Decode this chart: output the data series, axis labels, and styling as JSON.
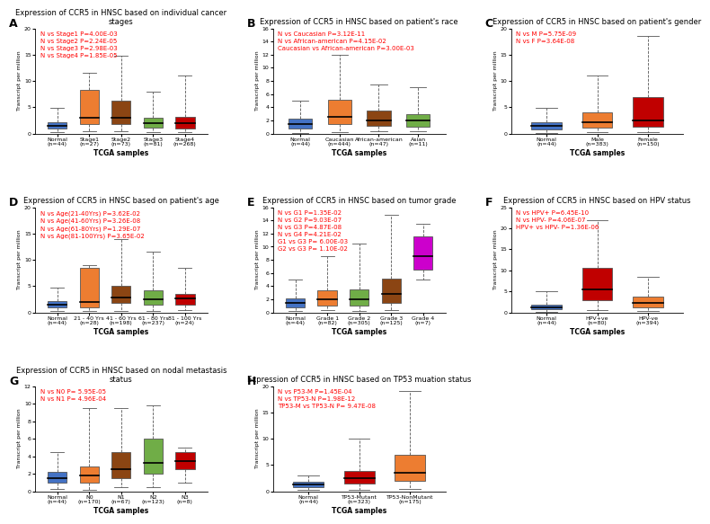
{
  "panels": {
    "A": {
      "title": "Expression of CCR5 in HNSC based on individual cancer\nstages",
      "labels": [
        "Normal\n(n=44)",
        "Stage1\n(n=27)",
        "Stage2\n(n=73)",
        "Stage3\n(n=81)",
        "Stage4\n(n=268)"
      ],
      "colors": [
        "#4472C4",
        "#ED7D31",
        "#8B4513",
        "#70AD47",
        "#C00000"
      ],
      "ylim": [
        0,
        20
      ],
      "yticks": [
        0,
        5,
        10,
        15,
        20
      ],
      "stats_text": "N vs Stage1 P=4.00E-03\nN vs Stage2 P=2.24E-05\nN vs Stage3 P=2.98E-03\nN vs Stage4 P=1.85E-05",
      "boxes": [
        {
          "med": 1.5,
          "q1": 1.0,
          "q3": 2.2,
          "whislo": 0.3,
          "whishi": 4.8
        },
        {
          "med": 3.0,
          "q1": 1.8,
          "q3": 8.3,
          "whislo": 0.4,
          "whishi": 11.5
        },
        {
          "med": 3.0,
          "q1": 1.8,
          "q3": 6.2,
          "whislo": 0.4,
          "whishi": 14.8
        },
        {
          "med": 2.0,
          "q1": 1.2,
          "q3": 3.0,
          "whislo": 0.3,
          "whishi": 8.0
        },
        {
          "med": 2.0,
          "q1": 1.0,
          "q3": 3.2,
          "whislo": 0.3,
          "whishi": 11.0
        }
      ]
    },
    "B": {
      "title": "Expression of CCR5 in HNSC based on patient's race",
      "labels": [
        "Normal\n(n=44)",
        "Caucasian\n(n=444)",
        "African-american\n(n=47)",
        "Asian\n(n=11)"
      ],
      "colors": [
        "#4472C4",
        "#ED7D31",
        "#8B4513",
        "#70AD47"
      ],
      "ylim": [
        0,
        16
      ],
      "yticks": [
        0,
        2,
        4,
        6,
        8,
        10,
        12,
        14,
        16
      ],
      "stats_text": "N vs Caucasian P=3.12E-11\nN vs African-american P=4.15E-02\nCaucasian vs African-american P=3.00E-03",
      "boxes": [
        {
          "med": 1.5,
          "q1": 0.8,
          "q3": 2.2,
          "whislo": 0.1,
          "whishi": 5.0
        },
        {
          "med": 2.5,
          "q1": 1.5,
          "q3": 5.2,
          "whislo": 0.2,
          "whishi": 12.0
        },
        {
          "med": 2.0,
          "q1": 1.2,
          "q3": 3.5,
          "whislo": 0.3,
          "whishi": 7.5
        },
        {
          "med": 2.0,
          "q1": 1.0,
          "q3": 3.0,
          "whislo": 0.3,
          "whishi": 7.0
        }
      ]
    },
    "C": {
      "title": "Expression of CCR5 in HNSC based on patient's gender",
      "labels": [
        "Normal\n(n=44)",
        "Male\n(n=383)",
        "Female\n(n=150)"
      ],
      "colors": [
        "#4472C4",
        "#ED7D31",
        "#C00000"
      ],
      "ylim": [
        0,
        20
      ],
      "yticks": [
        0,
        5,
        10,
        15,
        20
      ],
      "stats_text": "N vs M P=5.75E-09\nN vs F P=3.64E-08",
      "boxes": [
        {
          "med": 1.5,
          "q1": 0.8,
          "q3": 2.2,
          "whislo": 0.1,
          "whishi": 4.8
        },
        {
          "med": 2.2,
          "q1": 1.2,
          "q3": 4.0,
          "whislo": 0.2,
          "whishi": 11.0
        },
        {
          "med": 2.5,
          "q1": 1.3,
          "q3": 7.0,
          "whislo": 0.3,
          "whishi": 18.5
        }
      ]
    },
    "D": {
      "title": "Expression of CCR5 in HNSC based on patient's age",
      "labels": [
        "Normal\n(n=44)",
        "21 - 40 Yrs\n(n=28)",
        "41 - 60 Yrs\n(n=198)",
        "61 - 80 Yrs\n(n=237)",
        "81 - 100 Yrs\n(n=24)"
      ],
      "colors": [
        "#4472C4",
        "#ED7D31",
        "#8B4513",
        "#70AD47",
        "#C00000"
      ],
      "ylim": [
        0,
        20
      ],
      "yticks": [
        0,
        5,
        10,
        15,
        20
      ],
      "stats_text": "N vs Age(21-40Yrs) P=3.62E-02\nN vs Age(41-60Yrs) P=3.26E-08\nN vs Age(61-80Yrs) P=1.29E-07\nN vs Age(81-100Yrs) P=3.65E-02",
      "boxes": [
        {
          "med": 1.5,
          "q1": 1.0,
          "q3": 2.2,
          "whislo": 0.2,
          "whishi": 4.8
        },
        {
          "med": 2.0,
          "q1": 1.0,
          "q3": 8.5,
          "whislo": 0.3,
          "whishi": 9.0
        },
        {
          "med": 2.8,
          "q1": 1.8,
          "q3": 5.0,
          "whislo": 0.3,
          "whishi": 14.0
        },
        {
          "med": 2.5,
          "q1": 1.5,
          "q3": 4.2,
          "whislo": 0.3,
          "whishi": 11.5
        },
        {
          "med": 2.7,
          "q1": 1.5,
          "q3": 3.5,
          "whislo": 0.5,
          "whishi": 8.5
        }
      ]
    },
    "E": {
      "title": "Expression of CCR5 in HNSC based on tumor grade",
      "labels": [
        "Normal\n(n=44)",
        "Grade 1\n(n=82)",
        "Grade 2\n(n=305)",
        "Grade 3\n(n=125)",
        "Grade 4\n(n=7)"
      ],
      "colors": [
        "#4472C4",
        "#ED7D31",
        "#70AD47",
        "#8B4513",
        "#CC00CC"
      ],
      "ylim": [
        0,
        16
      ],
      "yticks": [
        0,
        2,
        4,
        6,
        8,
        10,
        12,
        14,
        16
      ],
      "stats_text": "N vs G1 P=1.35E-02\nN vs G2 P=9.03E-07\nN vs G3 P=4.87E-08\nN vs G4 P=4.21E-02\nG1 vs G3 P= 6.00E-03\nG2 vs G3 P= 1.10E-02",
      "boxes": [
        {
          "med": 1.5,
          "q1": 0.8,
          "q3": 2.2,
          "whislo": 0.2,
          "whishi": 5.0
        },
        {
          "med": 2.0,
          "q1": 1.0,
          "q3": 3.3,
          "whislo": 0.3,
          "whishi": 8.5
        },
        {
          "med": 2.0,
          "q1": 1.0,
          "q3": 3.5,
          "whislo": 0.2,
          "whishi": 10.5
        },
        {
          "med": 2.8,
          "q1": 1.5,
          "q3": 5.2,
          "whislo": 0.3,
          "whishi": 14.8
        },
        {
          "med": 8.5,
          "q1": 6.5,
          "q3": 11.5,
          "whislo": 5.0,
          "whishi": 13.5
        }
      ]
    },
    "F": {
      "title": "Expression of CCR5 in HNSC based on HPV status",
      "labels": [
        "Normal\n(n=44)",
        "HPV+ve\n(n=80)",
        "HPV-ve\n(n=394)"
      ],
      "colors": [
        "#4472C4",
        "#C00000",
        "#ED7D31"
      ],
      "ylim": [
        0,
        25
      ],
      "yticks": [
        0,
        5,
        10,
        15,
        20,
        25
      ],
      "stats_text": "N vs HPV+ P=6.45E-10\nN vs HPV- P=4.06E-07\nHPV+ vs HPV- P=1.36E-06",
      "boxes": [
        {
          "med": 1.2,
          "q1": 0.7,
          "q3": 1.8,
          "whislo": 0.1,
          "whishi": 5.0
        },
        {
          "med": 5.5,
          "q1": 3.0,
          "q3": 10.5,
          "whislo": 0.5,
          "whishi": 22.0
        },
        {
          "med": 2.2,
          "q1": 1.2,
          "q3": 3.8,
          "whislo": 0.3,
          "whishi": 8.5
        }
      ]
    },
    "G": {
      "title": "Expression of CCR5 in HNSC based on nodal metastasis\nstatus",
      "labels": [
        "Normal\n(n=44)",
        "N0\n(n=170)",
        "N1\n(n=67)",
        "N2\n(n=123)",
        "N3\n(n=8)"
      ],
      "colors": [
        "#4472C4",
        "#ED7D31",
        "#8B4513",
        "#70AD47",
        "#C00000"
      ],
      "ylim": [
        0,
        12
      ],
      "yticks": [
        0,
        2,
        4,
        6,
        8,
        10,
        12
      ],
      "stats_text": "N vs N0 P= 5.95E-05\nN vs N1 P= 4.96E-04",
      "boxes": [
        {
          "med": 1.5,
          "q1": 1.0,
          "q3": 2.2,
          "whislo": 0.3,
          "whishi": 4.5
        },
        {
          "med": 1.8,
          "q1": 1.0,
          "q3": 2.8,
          "whislo": 0.2,
          "whishi": 9.5
        },
        {
          "med": 2.5,
          "q1": 1.5,
          "q3": 4.5,
          "whislo": 0.5,
          "whishi": 9.5
        },
        {
          "med": 3.2,
          "q1": 2.0,
          "q3": 6.0,
          "whislo": 0.5,
          "whishi": 9.8
        },
        {
          "med": 3.5,
          "q1": 2.5,
          "q3": 4.5,
          "whislo": 1.0,
          "whishi": 5.0
        }
      ]
    },
    "H": {
      "title": "Expression of CCR5 in HNSC based on TP53 muation status",
      "labels": [
        "Normal\n(n=44)",
        "TP53-Mutant\n(n=323)",
        "TP53-NonMutant\n(n=175)"
      ],
      "colors": [
        "#4472C4",
        "#C00000",
        "#ED7D31"
      ],
      "ylim": [
        0,
        20
      ],
      "yticks": [
        0,
        5,
        10,
        15,
        20
      ],
      "stats_text": "N vs P53-M P=1.45E-04\nN vs TP53-N P=1.98E-12\nTP53-M vs TP53-N P= 9.47E-08",
      "boxes": [
        {
          "med": 1.3,
          "q1": 0.8,
          "q3": 1.8,
          "whislo": 0.2,
          "whishi": 3.0
        },
        {
          "med": 2.5,
          "q1": 1.5,
          "q3": 3.8,
          "whislo": 0.3,
          "whishi": 10.0
        },
        {
          "med": 3.5,
          "q1": 2.0,
          "q3": 7.0,
          "whislo": 0.5,
          "whishi": 19.0
        }
      ]
    }
  },
  "ylabel": "Transcript per million",
  "xlabel": "TCGA samples",
  "stats_color": "#FF0000",
  "stats_fontsize": 5.0,
  "title_fontsize": 6.0,
  "tick_fontsize": 4.5,
  "label_fontsize": 4.5,
  "xlabel_fontsize": 5.5,
  "letter_fontsize": 9,
  "background_color": "#FFFFFF"
}
